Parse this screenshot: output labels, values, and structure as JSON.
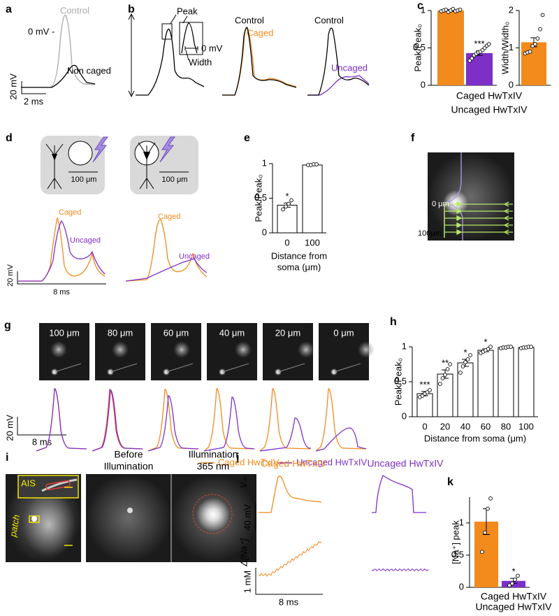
{
  "panel_labels": [
    "a",
    "b",
    "c",
    "d",
    "e",
    "f",
    "g",
    "h",
    "i",
    "j",
    "k"
  ],
  "a": {
    "zero": "0 mV -",
    "control": "Control",
    "non_caged": "Non caged",
    "scale_v": "20 mV",
    "scale_t": "2 ms"
  },
  "b": {
    "peak": "Peak",
    "zero": "0 mV",
    "width": "Width",
    "control_1": "Control",
    "caged": "Caged",
    "control_2": "Control",
    "uncaged": "Uncaged"
  },
  "d": {
    "scale_1": "100 μm",
    "scale_2": "100 μm",
    "caged_1": "Caged",
    "uncaged_1": "Uncaged",
    "caged_2": "Caged",
    "uncaged_2": "Uncaged",
    "scale_v": "20 mV",
    "scale_t": "8 ms"
  },
  "f": {
    "top": "0 μm",
    "bottom": "100μm"
  },
  "g": {
    "image_labels": [
      "100 μm",
      "80 μm",
      "60 μm",
      "40 μm",
      "20 μm",
      "0 μm"
    ],
    "scale_v": "20 mV",
    "scale_t": "8 ms",
    "legend": [
      "Caged HwTxIV",
      "Uncaged HwTxIV"
    ]
  },
  "i": {
    "ais": "AIS",
    "patch": "patch",
    "before": [
      "Before",
      "Illumination"
    ],
    "after": [
      "Illumination",
      "365 nm"
    ]
  },
  "j": {
    "caged": "Caged HwTxIV",
    "uncaged": "Uncaged HwTxIV",
    "vm": "Vₘ",
    "scale_v": "40 mV",
    "na": "Δ[Na⁺]",
    "scale_c": "1 mM",
    "scale_t": "8 ms"
  },
  "chart_data": [
    {
      "type": "bar",
      "ylabel": "Peak/Peak₀",
      "categories": [
        "Caged HwTxIV",
        "Uncaged HwTxIV"
      ],
      "values": [
        1.0,
        0.43
      ],
      "errors": [
        0.01,
        0.03
      ],
      "points": [
        [
          0.99,
          1.0,
          1.01,
          0.98,
          1.0,
          1.02,
          0.99,
          1.0,
          1.01
        ],
        [
          0.33,
          0.36,
          0.4,
          0.42,
          0.44,
          0.45,
          0.47,
          0.5,
          0.53,
          0.55
        ]
      ],
      "annotations": [
        null,
        "***"
      ],
      "colors": [
        "#f28a1c",
        "#7e2fc8"
      ],
      "ylim": [
        0,
        1
      ],
      "yticks": [
        0,
        0.5,
        1
      ]
    },
    {
      "type": "bar",
      "ylabel": "Width/Width₀",
      "values": [
        1.15
      ],
      "errors": [
        0.12
      ],
      "points": [
        [
          0.85,
          0.88,
          0.9,
          1.05,
          1.1,
          1.25,
          1.5,
          1.88
        ]
      ],
      "colors": [
        "#f28a1c"
      ],
      "ylim": [
        0,
        2
      ],
      "yticks": [
        0,
        1,
        2
      ]
    },
    {
      "type": "bar",
      "ylabel": "Peak/Peak₀",
      "xlabel": [
        "Distance from",
        "soma (μm)"
      ],
      "categories": [
        "0",
        "100"
      ],
      "values": [
        0.4,
        0.98
      ],
      "errors": [
        0.03,
        0.01
      ],
      "points": [
        [
          0.34,
          0.38,
          0.42,
          0.47
        ],
        [
          0.98,
          0.98,
          0.99,
          0.99
        ]
      ],
      "annotations": [
        "*",
        null
      ],
      "colors": [
        "#ffffff",
        "#ffffff"
      ],
      "edgecolor": "#000000",
      "ylim": [
        0,
        1
      ],
      "yticks": [
        0,
        0.5,
        1
      ]
    },
    {
      "type": "bar",
      "ylabel": "Peak/Peak₀",
      "xlabel": "Distance from soma (μm)",
      "categories": [
        "0",
        "20",
        "40",
        "60",
        "80",
        "100"
      ],
      "values": [
        0.33,
        0.61,
        0.77,
        0.95,
        0.99,
        0.99
      ],
      "errors": [
        0.03,
        0.06,
        0.05,
        0.02,
        0.005,
        0.005
      ],
      "points": [
        [
          0.28,
          0.3,
          0.33,
          0.35,
          0.38
        ],
        [
          0.47,
          0.55,
          0.6,
          0.68,
          0.75
        ],
        [
          0.63,
          0.72,
          0.78,
          0.82,
          0.88
        ],
        [
          0.91,
          0.93,
          0.95,
          0.97,
          1.0
        ],
        [
          0.98,
          0.99,
          0.99,
          1.0,
          1.0
        ],
        [
          0.98,
          0.99,
          0.99,
          1.0,
          1.0
        ]
      ],
      "annotations": [
        "***",
        "**",
        "*",
        "*",
        null,
        null
      ],
      "colors": [
        "#ffffff",
        "#ffffff",
        "#ffffff",
        "#ffffff",
        "#ffffff",
        "#ffffff"
      ],
      "edgecolor": "#000000",
      "ylim": [
        0,
        1
      ],
      "yticks": [
        0,
        0.5,
        1
      ]
    },
    {
      "type": "bar",
      "ylabel": "[Na⁺] peak",
      "categories": [
        "Caged HwTxIV",
        "Uncaged HwTxIV"
      ],
      "values": [
        1.02,
        0.1
      ],
      "errors": [
        0.2,
        0.04
      ],
      "points": [
        [
          0.55,
          0.85,
          1.22,
          1.38
        ],
        [
          0.03,
          0.06,
          0.12,
          0.18
        ]
      ],
      "annotations": [
        null,
        "*"
      ],
      "colors": [
        "#f28a1c",
        "#7e2fc8"
      ],
      "ylim": [
        0,
        1.4
      ],
      "yticks": [
        0,
        0.5,
        1
      ]
    }
  ]
}
